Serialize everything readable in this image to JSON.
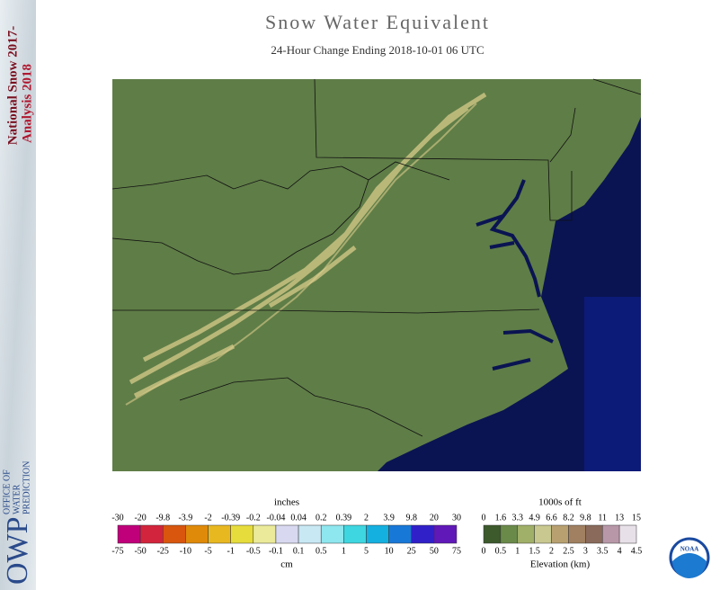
{
  "sidebar": {
    "title_lines": [
      "National Snow 2017-",
      "Analysis 2018"
    ],
    "logo": "OWP",
    "org_lines": [
      "OFFICE OF",
      "WATER",
      "PREDICTION"
    ]
  },
  "header": {
    "title": "Snow Water Equivalent",
    "subtitle": "24-Hour Change Ending 2018-10-01 06 UTC"
  },
  "swe_legend": {
    "top_unit": "inches",
    "top_labels": [
      "-30",
      "-20",
      "-9.8",
      "-3.9",
      "-2",
      "-0.39",
      "-0.2",
      "-0.04",
      "0.04",
      "0.2",
      "0.39",
      "2",
      "3.9",
      "9.8",
      "20",
      "30"
    ],
    "bottom_labels": [
      "-75",
      "-50",
      "-25",
      "-10",
      "-5",
      "-1",
      "-0.5",
      "-0.1",
      "0.1",
      "0.5",
      "1",
      "5",
      "10",
      "25",
      "50",
      "75"
    ],
    "bottom_unit": "cm",
    "colors": [
      "#c0007a",
      "#d2243c",
      "#d8560e",
      "#e08a0a",
      "#e8b820",
      "#e6dc3c",
      "#eaea9a",
      "#d8d8f0",
      "#c8e8f4",
      "#8ee6ee",
      "#3ed6e0",
      "#14b0e0",
      "#1878d8",
      "#3020c8",
      "#6018b8"
    ]
  },
  "elevation_legend": {
    "top_unit": "1000s of ft",
    "top_labels": [
      "0",
      "1.6",
      "3.3",
      "4.9",
      "6.6",
      "8.2",
      "9.8",
      "11",
      "13",
      "15"
    ],
    "bottom_labels": [
      "0",
      "0.5",
      "1",
      "1.5",
      "2",
      "2.5",
      "3",
      "3.5",
      "4",
      "4.5"
    ],
    "bottom_unit": "Elevation (km)",
    "colors": [
      "#3c5a2c",
      "#6a8a4a",
      "#a0b068",
      "#c8c890",
      "#b8a070",
      "#a08060",
      "#8a6a5a",
      "#b898a8",
      "#e8e0e8"
    ]
  },
  "noaa_logo": {
    "label": "NOAA"
  }
}
